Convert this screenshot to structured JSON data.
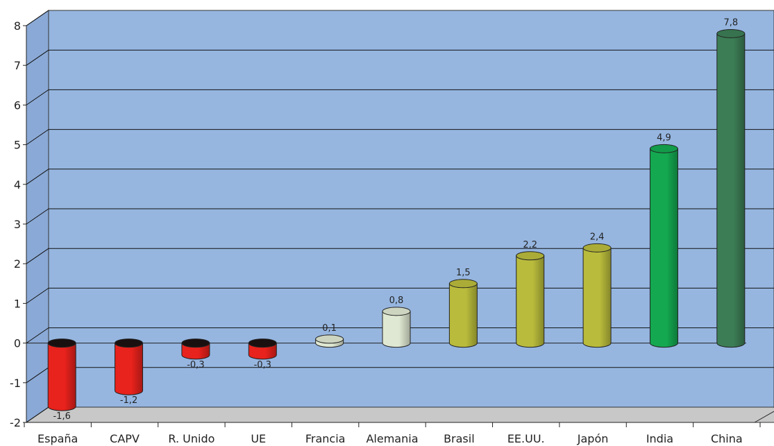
{
  "chart_data": {
    "type": "bar",
    "title": "",
    "xlabel": "",
    "ylabel": "",
    "ylim": [
      -2,
      8
    ],
    "yticks": [
      "8",
      "7",
      "6",
      "5",
      "4",
      "3",
      "2",
      "1",
      "0",
      "-1",
      "-2"
    ],
    "categories": [
      "España",
      "CAPV",
      "R. Unido",
      "UE",
      "Francia",
      "Alemania",
      "Brasil",
      "EE.UU.",
      "Japón",
      "India",
      "China"
    ],
    "values": [
      -1.6,
      -1.2,
      -0.3,
      -0.3,
      0.1,
      0.8,
      1.5,
      2.2,
      2.4,
      4.9,
      7.8
    ],
    "value_labels": [
      "-1,6",
      "-1,2",
      "-0,3",
      "-0,3",
      "0,1",
      "0,8",
      "1,5",
      "2,2",
      "2,4",
      "4,9",
      "7,8"
    ],
    "bar_colors": [
      "#e8221c",
      "#e8221c",
      "#e8221c",
      "#e8221c",
      "#dfe8d2",
      "#dfe8d2",
      "#b9bb3c",
      "#b9bb3c",
      "#b9bb3c",
      "#14a850",
      "#3c7d55"
    ],
    "grid": true,
    "legend": "none"
  },
  "colors": {
    "wall": "#96b6e0",
    "floor": "#c8c8c8",
    "gridline": "#111111"
  }
}
